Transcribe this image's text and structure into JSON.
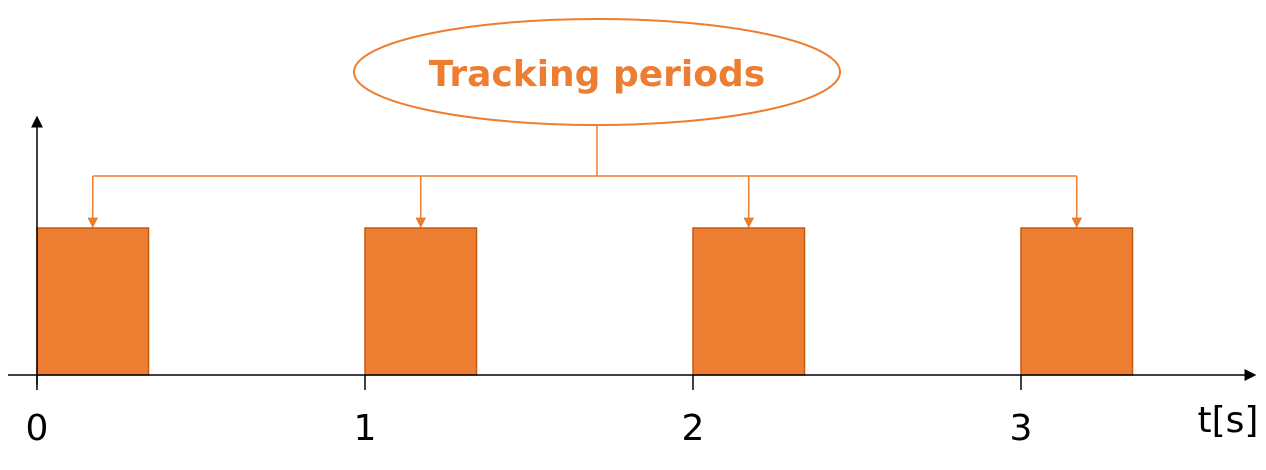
{
  "callout": {
    "label": "Tracking periods"
  },
  "axis": {
    "x_unit_label": "t[s]",
    "ticks": [
      "0",
      "1",
      "2",
      "3"
    ]
  },
  "periods": [
    {
      "start": 0,
      "duration": 0.34
    },
    {
      "start": 1,
      "duration": 0.34
    },
    {
      "start": 2,
      "duration": 0.34
    },
    {
      "start": 3,
      "duration": 0.34
    }
  ],
  "colors": {
    "accent": "#ED7D31",
    "block_border": "#C55A11",
    "axis": "#000000"
  }
}
